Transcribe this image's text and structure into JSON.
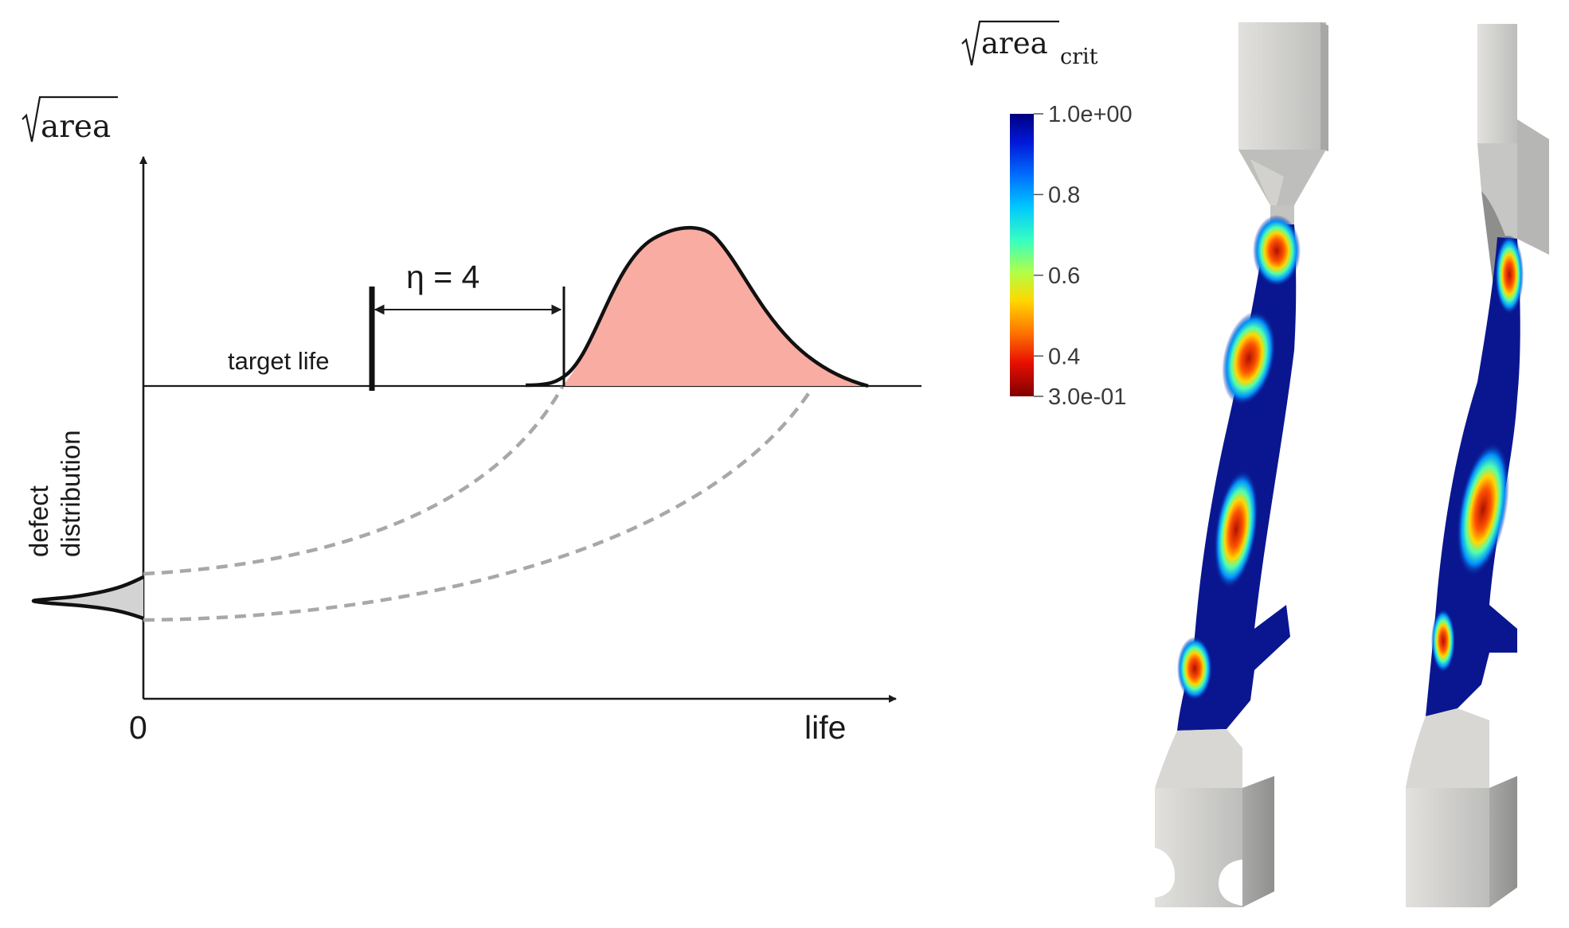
{
  "left_diagram": {
    "y_axis_label": "area",
    "origin_label": "0",
    "x_axis_label": "life",
    "target_life_label": "target life",
    "eta_label": "η = 4",
    "defect_label_line1": "defect",
    "defect_label_line2": "distribution",
    "colors": {
      "life_distribution_fill": "#f9aca2",
      "defect_distribution_fill": "#d3d3d3",
      "mapping_dash": "#a8a8a8",
      "axis": "#1a1a1a"
    }
  },
  "colorbar": {
    "title_main": "area",
    "title_sub": "crit",
    "tick_labels": [
      "1.0e+00",
      "0.8",
      "0.6",
      "0.4",
      "3.0e-01"
    ],
    "tick_values": [
      1.0,
      0.8,
      0.6,
      0.4,
      0.3
    ],
    "range": [
      0.3,
      1.0
    ],
    "colormap": "jet",
    "colors_high_to_low": [
      "#00007f",
      "#0018d8",
      "#0070ff",
      "#00c8ff",
      "#38ffc0",
      "#b0ff48",
      "#ffd800",
      "#ff7800",
      "#e81000",
      "#800000"
    ]
  },
  "renders": {
    "specimens": [
      "specimen-front-view",
      "specimen-side-view"
    ],
    "body_color": "#c8c8c6",
    "grip_color": "#d6d4d0",
    "field_low_color": "#0a1690"
  }
}
